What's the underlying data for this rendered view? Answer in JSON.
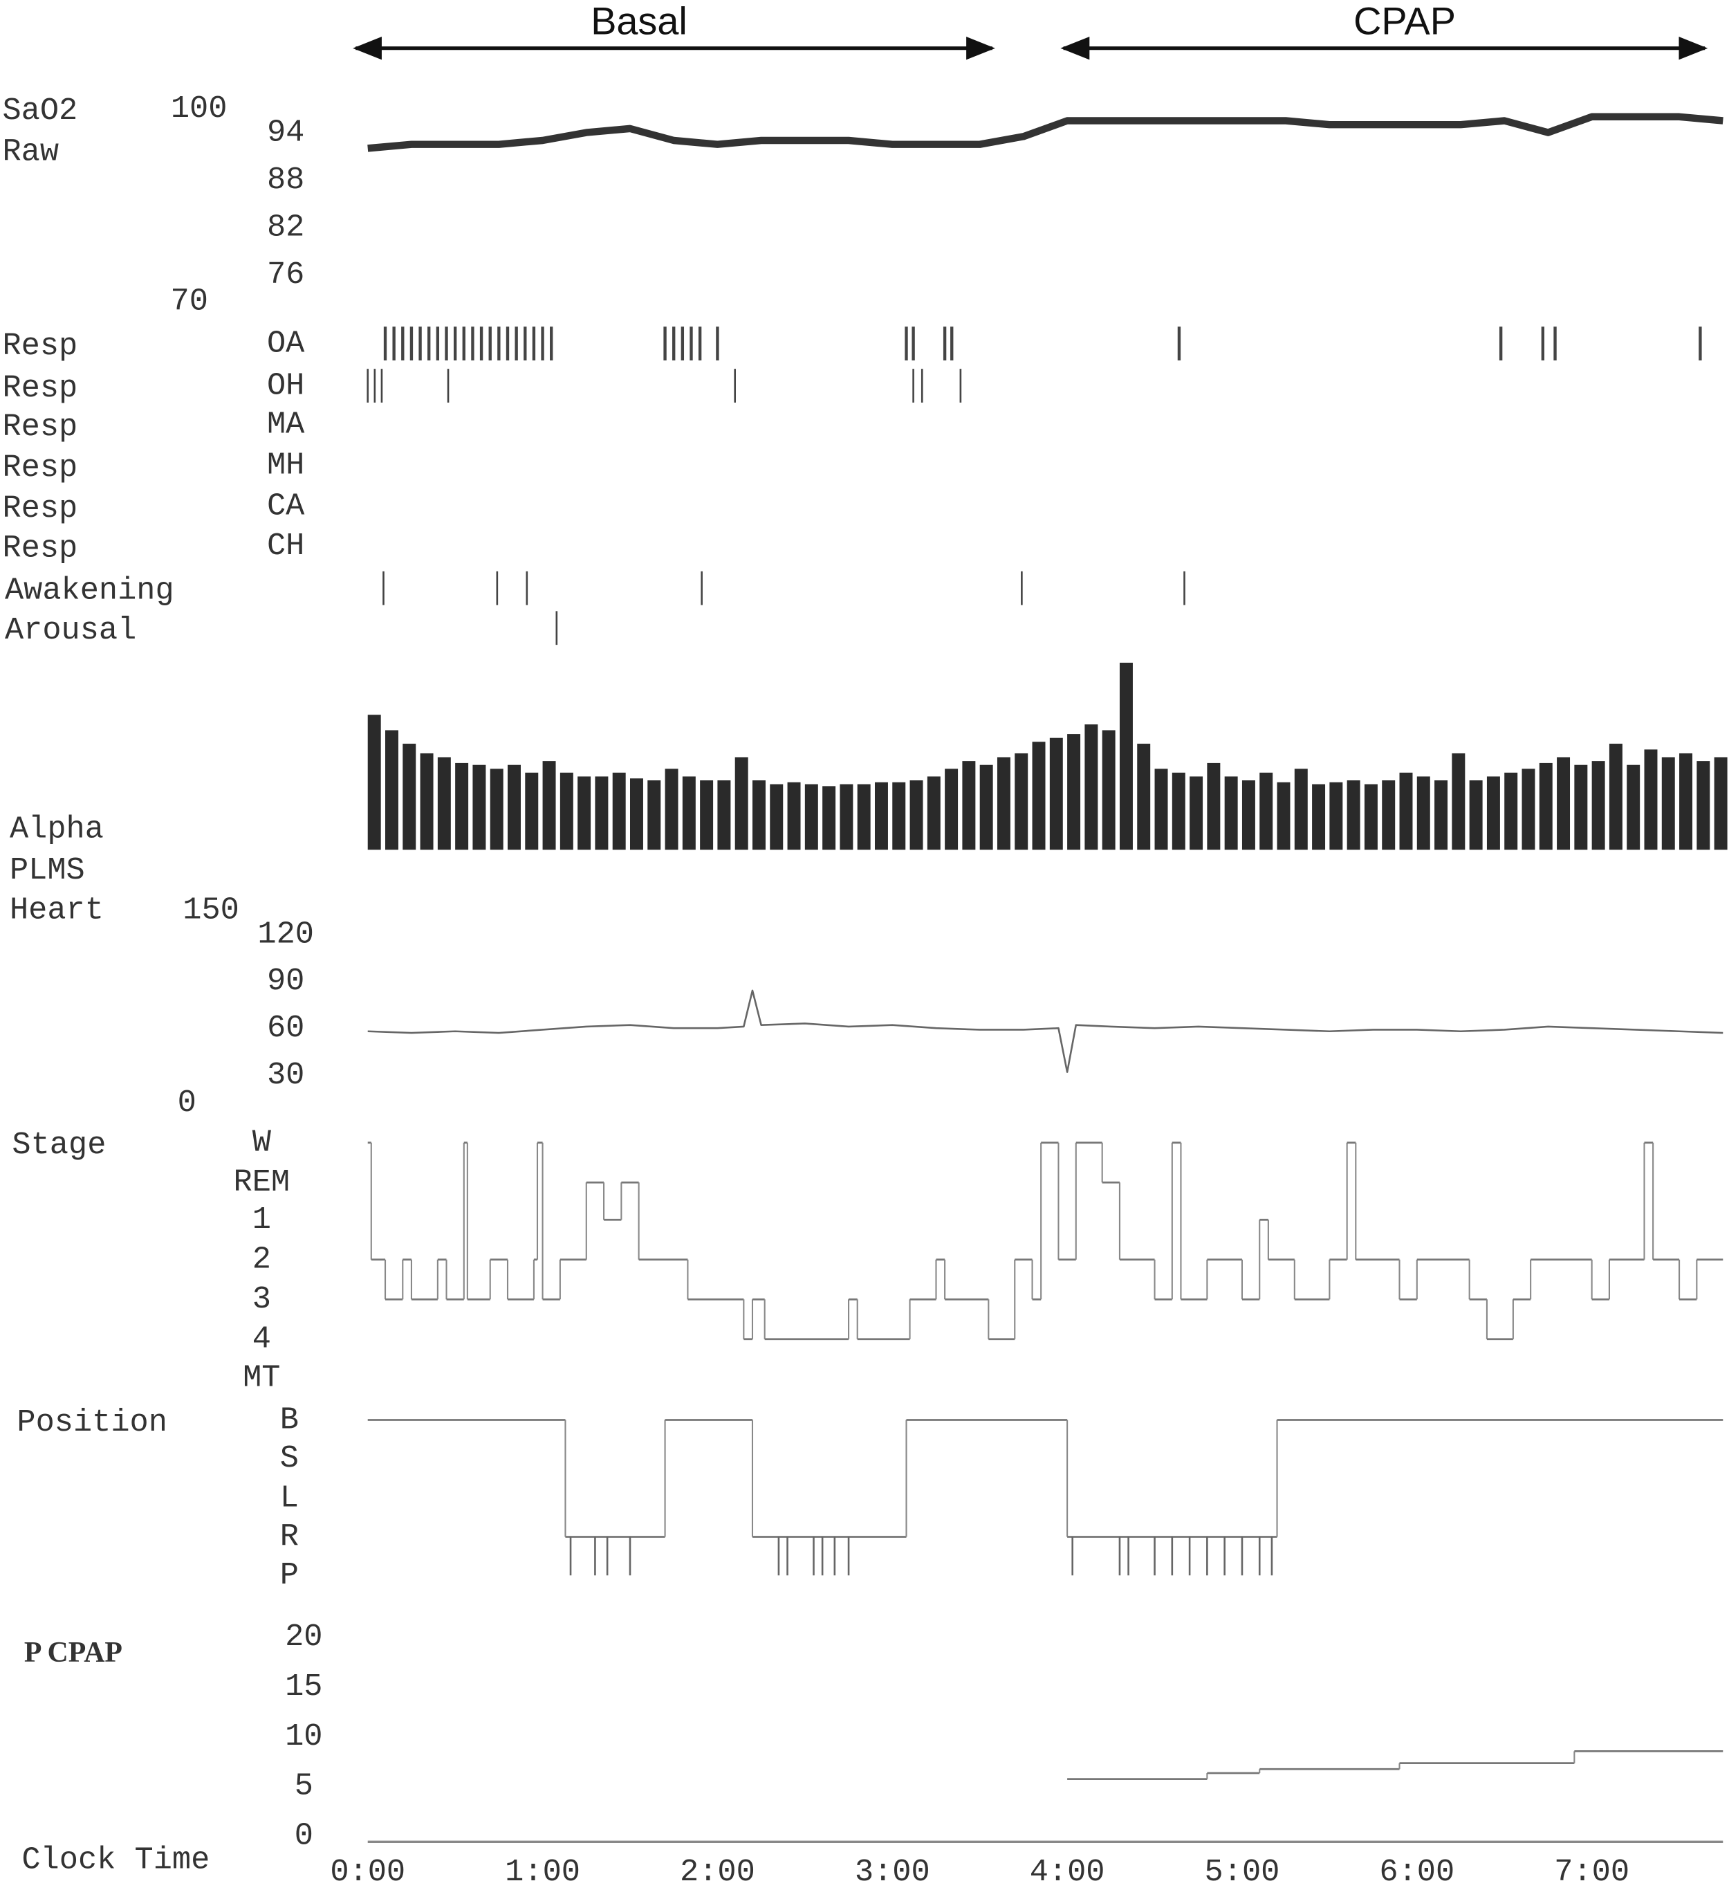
{
  "header": {
    "left": "Basal",
    "right": "CPAP"
  },
  "chart_data": [
    {
      "type": "line",
      "labels": [
        "SaO2",
        "Raw"
      ],
      "x": [
        0,
        0.25,
        0.5,
        0.75,
        1,
        1.25,
        1.5,
        1.75,
        2,
        2.25,
        2.5,
        2.75,
        3,
        3.25,
        3.5,
        3.75,
        4,
        4.25,
        4.5,
        4.75,
        5,
        5.25,
        5.5,
        5.75,
        6,
        6.25,
        6.5,
        6.75,
        7,
        7.25,
        7.5,
        7.75
      ],
      "values": [
        92,
        92.5,
        92.5,
        92.5,
        93,
        94,
        94.5,
        93,
        92.5,
        93,
        93,
        93,
        92.5,
        92.5,
        92.5,
        93.5,
        95.5,
        95.5,
        95.5,
        95.5,
        95.5,
        95.5,
        95,
        95,
        95,
        95,
        95.5,
        94,
        96,
        96,
        96,
        95.5
      ],
      "ylim": [
        70,
        100
      ],
      "yticks": [
        94,
        88,
        82,
        76
      ]
    },
    {
      "type": "events",
      "rows": [
        {
          "label": "Resp",
          "code": "OA",
          "x": [
            0.1,
            0.15,
            0.2,
            0.25,
            0.3,
            0.35,
            0.4,
            0.45,
            0.5,
            0.55,
            0.6,
            0.65,
            0.7,
            0.75,
            0.8,
            0.85,
            0.9,
            0.95,
            1.0,
            1.05,
            1.7,
            1.75,
            1.8,
            1.85,
            1.9,
            2.0,
            3.08,
            3.12,
            3.3,
            3.34,
            4.64,
            6.48,
            6.72,
            6.79,
            7.62
          ]
        },
        {
          "label": "Resp",
          "code": "OH",
          "x": [
            0.0,
            0.04,
            0.08,
            0.46,
            2.1,
            3.12,
            3.17,
            3.39
          ]
        },
        {
          "label": "Resp",
          "code": "MA",
          "x": []
        },
        {
          "label": "Resp",
          "code": "MH",
          "x": []
        },
        {
          "label": "Resp",
          "code": "CA",
          "x": []
        },
        {
          "label": "Resp",
          "code": "CH",
          "x": []
        },
        {
          "label": "Awakening",
          "x": [
            0.09,
            0.74,
            0.91,
            1.91,
            3.74,
            4.67
          ]
        },
        {
          "label": "Arousal",
          "x": [
            1.08
          ]
        }
      ]
    },
    {
      "type": "bar",
      "labels": [
        "Alpha",
        "PLMS"
      ],
      "x": [
        0,
        0.1,
        0.2,
        0.3,
        0.4,
        0.5,
        0.6,
        0.7,
        0.8,
        0.9,
        1,
        1.1,
        1.2,
        1.3,
        1.4,
        1.5,
        1.6,
        1.7,
        1.8,
        1.9,
        2,
        2.1,
        2.2,
        2.3,
        2.4,
        2.5,
        2.6,
        2.7,
        2.8,
        2.9,
        3,
        3.1,
        3.2,
        3.3,
        3.4,
        3.5,
        3.6,
        3.7,
        3.8,
        3.9,
        4,
        4.1,
        4.2,
        4.3,
        4.4,
        4.5,
        4.6,
        4.7,
        4.8,
        4.9,
        5,
        5.1,
        5.2,
        5.3,
        5.4,
        5.5,
        5.6,
        5.7,
        5.8,
        5.9,
        6,
        6.1,
        6.2,
        6.3,
        6.4,
        6.5,
        6.6,
        6.7,
        6.8,
        6.9,
        7,
        7.1,
        7.2,
        7.3,
        7.4,
        7.5,
        7.6,
        7.7
      ],
      "values": [
        70,
        62,
        55,
        50,
        48,
        45,
        44,
        42,
        44,
        40,
        46,
        40,
        38,
        38,
        40,
        37,
        36,
        42,
        38,
        36,
        36,
        48,
        36,
        34,
        35,
        34,
        33,
        34,
        34,
        35,
        35,
        36,
        38,
        42,
        46,
        44,
        48,
        50,
        56,
        58,
        60,
        65,
        62,
        97,
        55,
        42,
        40,
        38,
        45,
        38,
        36,
        40,
        35,
        42,
        34,
        35,
        36,
        34,
        36,
        40,
        38,
        36,
        50,
        36,
        38,
        40,
        42,
        45,
        48,
        44,
        46,
        55,
        44,
        52,
        48,
        50,
        46,
        48
      ],
      "ylim": [
        0,
        100
      ]
    },
    {
      "type": "line",
      "labels": [
        "Heart"
      ],
      "x": [
        0,
        0.25,
        0.5,
        0.75,
        1,
        1.25,
        1.5,
        1.75,
        2,
        2.15,
        2.2,
        2.25,
        2.5,
        2.75,
        3,
        3.25,
        3.5,
        3.75,
        3.95,
        4,
        4.05,
        4.25,
        4.5,
        4.75,
        5,
        5.25,
        5.5,
        5.75,
        6,
        6.25,
        6.5,
        6.75,
        7,
        7.25,
        7.5,
        7.75
      ],
      "values": [
        58,
        57,
        58,
        57,
        59,
        61,
        62,
        60,
        60,
        61,
        84,
        62,
        63,
        61,
        62,
        60,
        59,
        59,
        60,
        32,
        62,
        61,
        60,
        61,
        60,
        59,
        58,
        59,
        59,
        58,
        59,
        61,
        60,
        59,
        58,
        57
      ],
      "ylim": [
        0,
        150
      ],
      "yticks": [
        120,
        90,
        60,
        30
      ]
    },
    {
      "type": "step",
      "labels": [
        "Stage"
      ],
      "ycategories": [
        "W",
        "REM",
        "1",
        "2",
        "3",
        "4",
        "MT"
      ],
      "x": [
        0,
        0.02,
        0.1,
        0.2,
        0.25,
        0.4,
        0.45,
        0.55,
        0.57,
        0.7,
        0.8,
        0.95,
        0.97,
        1.0,
        1.1,
        1.25,
        1.35,
        1.45,
        1.55,
        1.83,
        2.15,
        2.2,
        2.27,
        2.75,
        2.8,
        3.1,
        3.25,
        3.3,
        3.55,
        3.7,
        3.8,
        3.85,
        3.95,
        4.05,
        4.2,
        4.3,
        4.5,
        4.6,
        4.65,
        4.8,
        5.0,
        5.1,
        5.15,
        5.3,
        5.5,
        5.6,
        5.65,
        5.9,
        6.0,
        6.3,
        6.4,
        6.55,
        6.65,
        7.0,
        7.1,
        7.3,
        7.35,
        7.5,
        7.6
      ],
      "values": [
        "W",
        "2",
        "3",
        "2",
        "3",
        "2",
        "3",
        "W",
        "3",
        "2",
        "3",
        "2",
        "W",
        "3",
        "2",
        "REM",
        "1",
        "REM",
        "2",
        "3",
        "4",
        "3",
        "4",
        "3",
        "4",
        "3",
        "2",
        "3",
        "4",
        "2",
        "3",
        "W",
        "2",
        "W",
        "REM",
        "2",
        "3",
        "W",
        "3",
        "2",
        "3",
        "1",
        "2",
        "3",
        "2",
        "W",
        "2",
        "3",
        "2",
        "3",
        "4",
        "3",
        "2",
        "3",
        "2",
        "W",
        "2",
        "3",
        "2"
      ]
    },
    {
      "type": "step",
      "labels": [
        "Position"
      ],
      "ycategories": [
        "B",
        "S",
        "L",
        "R",
        "P"
      ],
      "x": [
        0,
        1.13,
        1.7,
        2.2,
        3.08,
        4.0,
        5.2
      ],
      "values": [
        "B",
        "R",
        "B",
        "R",
        "B",
        "R",
        "B"
      ],
      "p_events": [
        1.16,
        1.3,
        1.37,
        1.5,
        2.35,
        2.4,
        2.55,
        2.6,
        2.67,
        2.75,
        4.03,
        4.3,
        4.35,
        4.5,
        4.6,
        4.7,
        4.8,
        4.9,
        5.0,
        5.1,
        5.17
      ]
    },
    {
      "type": "step",
      "labels": [
        "P CPAP"
      ],
      "x": [
        4.0,
        4.8,
        5.1,
        5.9,
        6.9
      ],
      "values": [
        5.7,
        6.3,
        6.7,
        7.3,
        8.5
      ],
      "ylim": [
        0,
        20
      ],
      "yticks": [
        20,
        15,
        10,
        5,
        0
      ]
    }
  ],
  "x_axis": {
    "label": "Clock Time",
    "xlim": [
      0,
      7.75
    ],
    "xticks": [
      {
        "value": 0,
        "label": "0:00"
      },
      {
        "value": 1,
        "label": "1:00"
      },
      {
        "value": 2,
        "label": "2:00"
      },
      {
        "value": 3,
        "label": "3:00"
      },
      {
        "value": 4,
        "label": "4:00"
      },
      {
        "value": 5,
        "label": "5:00"
      },
      {
        "value": 6,
        "label": "6:00"
      },
      {
        "value": 7,
        "label": "7:00"
      }
    ]
  }
}
